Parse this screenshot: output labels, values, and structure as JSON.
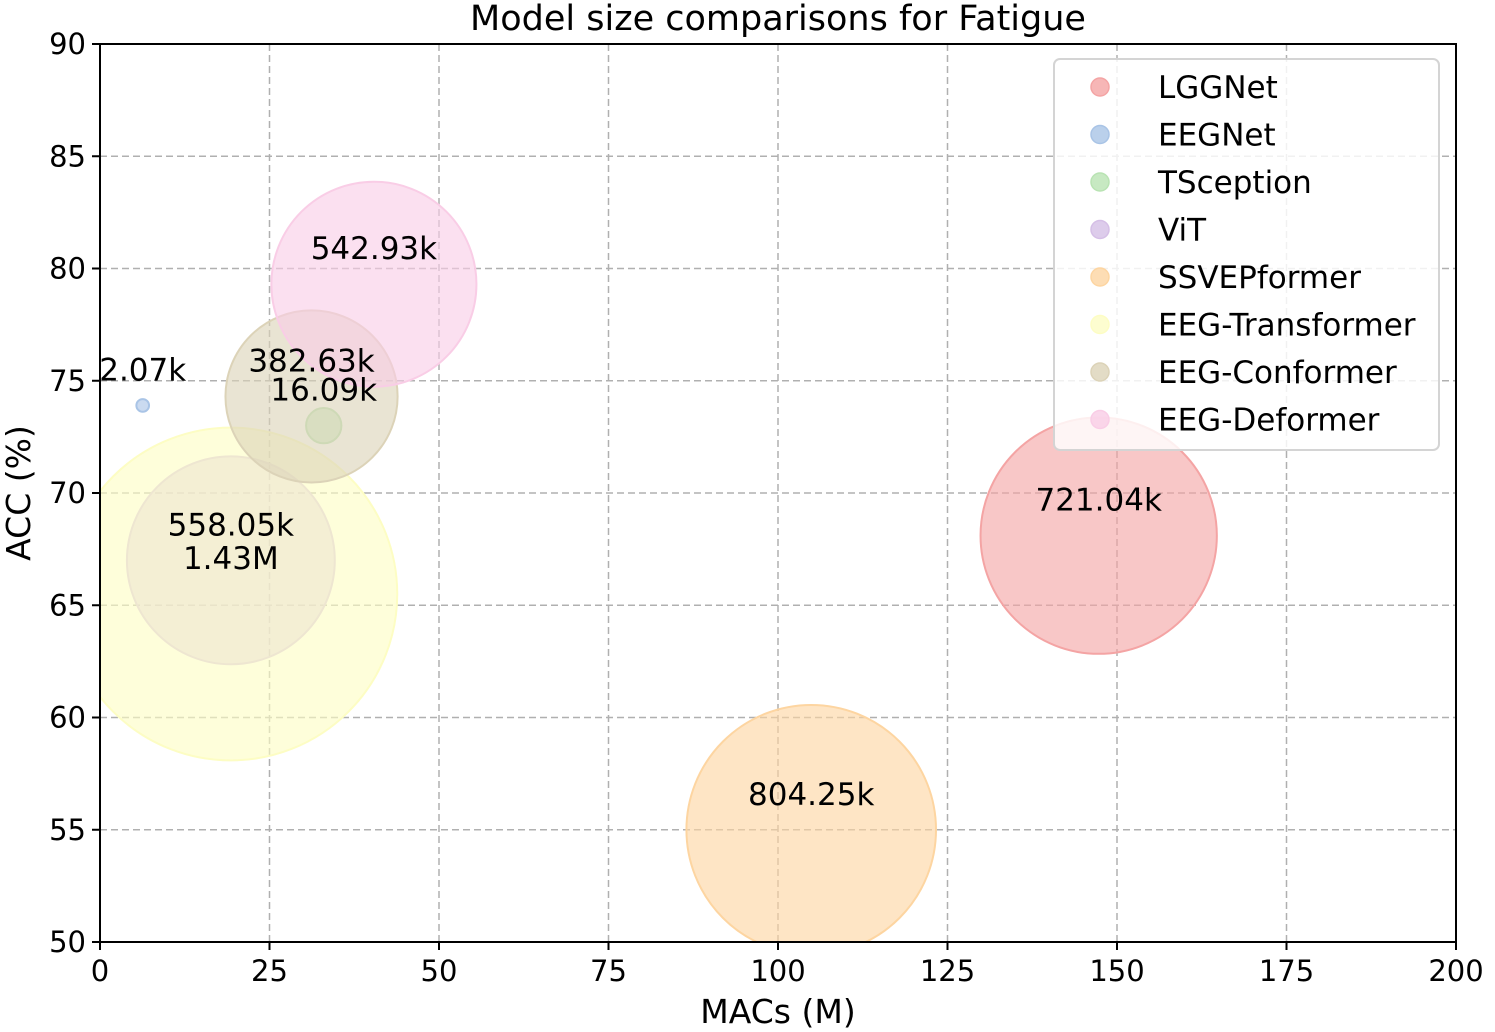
{
  "chart_data": {
    "type": "scatter",
    "subtype": "bubble",
    "title": "Model size comparisons for Fatigue",
    "xlabel": "MACs (M)",
    "ylabel": "ACC (%)",
    "xlim": [
      0,
      200
    ],
    "ylim": [
      50,
      90
    ],
    "xticks": [
      0,
      25,
      50,
      75,
      100,
      125,
      150,
      175,
      200
    ],
    "yticks": [
      50,
      55,
      60,
      65,
      70,
      75,
      80,
      85,
      90
    ],
    "xtick_labels": [
      "0",
      "25",
      "50",
      "75",
      "100",
      "125",
      "150",
      "175",
      "200"
    ],
    "ytick_labels": [
      "50",
      "55",
      "60",
      "65",
      "70",
      "75",
      "80",
      "85",
      "90"
    ],
    "grid": true,
    "legend_position": "top-right",
    "series": [
      {
        "name": "LGGNet",
        "x": 147.3,
        "y": 68.1,
        "params": 721.04,
        "label": "721.04k",
        "color": "#f4a4a4"
      },
      {
        "name": "EEGNet",
        "x": 6.3,
        "y": 73.9,
        "params": 2.07,
        "label": "2.07k",
        "color": "#a9c4e6"
      },
      {
        "name": "TSception",
        "x": 33.0,
        "y": 73.0,
        "params": 16.09,
        "label": "16.09k",
        "color": "#b9e3b3"
      },
      {
        "name": "ViT",
        "x": 19.3,
        "y": 67.0,
        "params": 558.05,
        "label": "558.05k",
        "color": "#d5bfe6"
      },
      {
        "name": "SSVEPformer",
        "x": 104.9,
        "y": 55.0,
        "params": 804.25,
        "label": "804.25k",
        "color": "#fdd5a1"
      },
      {
        "name": "EEG-Transformer",
        "x": 19.3,
        "y": 65.5,
        "params": 1430.0,
        "label": "1.43M",
        "color": "#fdfdc4"
      },
      {
        "name": "EEG-Conformer",
        "x": 31.2,
        "y": 74.3,
        "params": 382.63,
        "label": "382.63k",
        "color": "#dcd3b8"
      },
      {
        "name": "EEG-Deformer",
        "x": 40.4,
        "y": 79.3,
        "params": 542.93,
        "label": "542.93k",
        "color": "#f9cde6"
      }
    ]
  }
}
